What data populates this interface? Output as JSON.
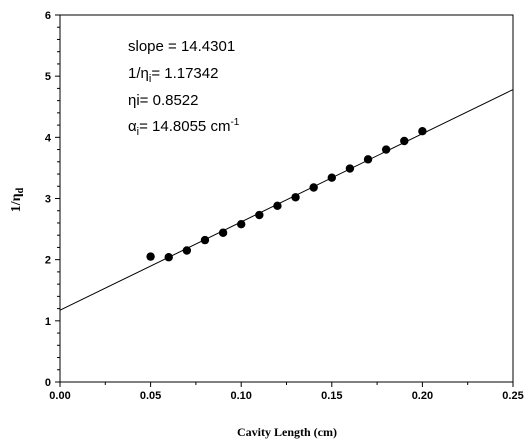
{
  "chart_data": {
    "type": "scatter",
    "xlabel": "Cavity Length (cm)",
    "ylabel": {
      "main": "1/",
      "greek": "η",
      "sub": "d"
    },
    "xlim": [
      0.0,
      0.25
    ],
    "ylim": [
      0,
      6
    ],
    "x_ticks": [
      "0.00",
      "0.05",
      "0.10",
      "0.15",
      "0.20",
      "0.25"
    ],
    "y_ticks": [
      "0",
      "1",
      "2",
      "3",
      "4",
      "5",
      "6"
    ],
    "grid": false,
    "series": [
      {
        "x": [
          0.05,
          0.06,
          0.07,
          0.08,
          0.09,
          0.1,
          0.11,
          0.12,
          0.13,
          0.14,
          0.15,
          0.16,
          0.17,
          0.18,
          0.19,
          0.2
        ],
        "y": [
          2.05,
          2.04,
          2.15,
          2.32,
          2.44,
          2.58,
          2.73,
          2.88,
          3.02,
          3.18,
          3.34,
          3.49,
          3.64,
          3.8,
          3.94,
          4.1
        ]
      }
    ],
    "fit_line": {
      "slope": 14.4301,
      "intercept": 1.17342
    },
    "annotations": {
      "slope": "slope = 14.4301",
      "inv_eta": {
        "prefix": "1/",
        "greek": "η",
        "sub": "i",
        "value": "= 1.17342"
      },
      "eta": {
        "greek": "η",
        "value": "i= 0.8522"
      },
      "alpha": {
        "greek": "α",
        "sub": "i",
        "value": "= 14.8055 cm",
        "sup": "-1"
      }
    }
  }
}
